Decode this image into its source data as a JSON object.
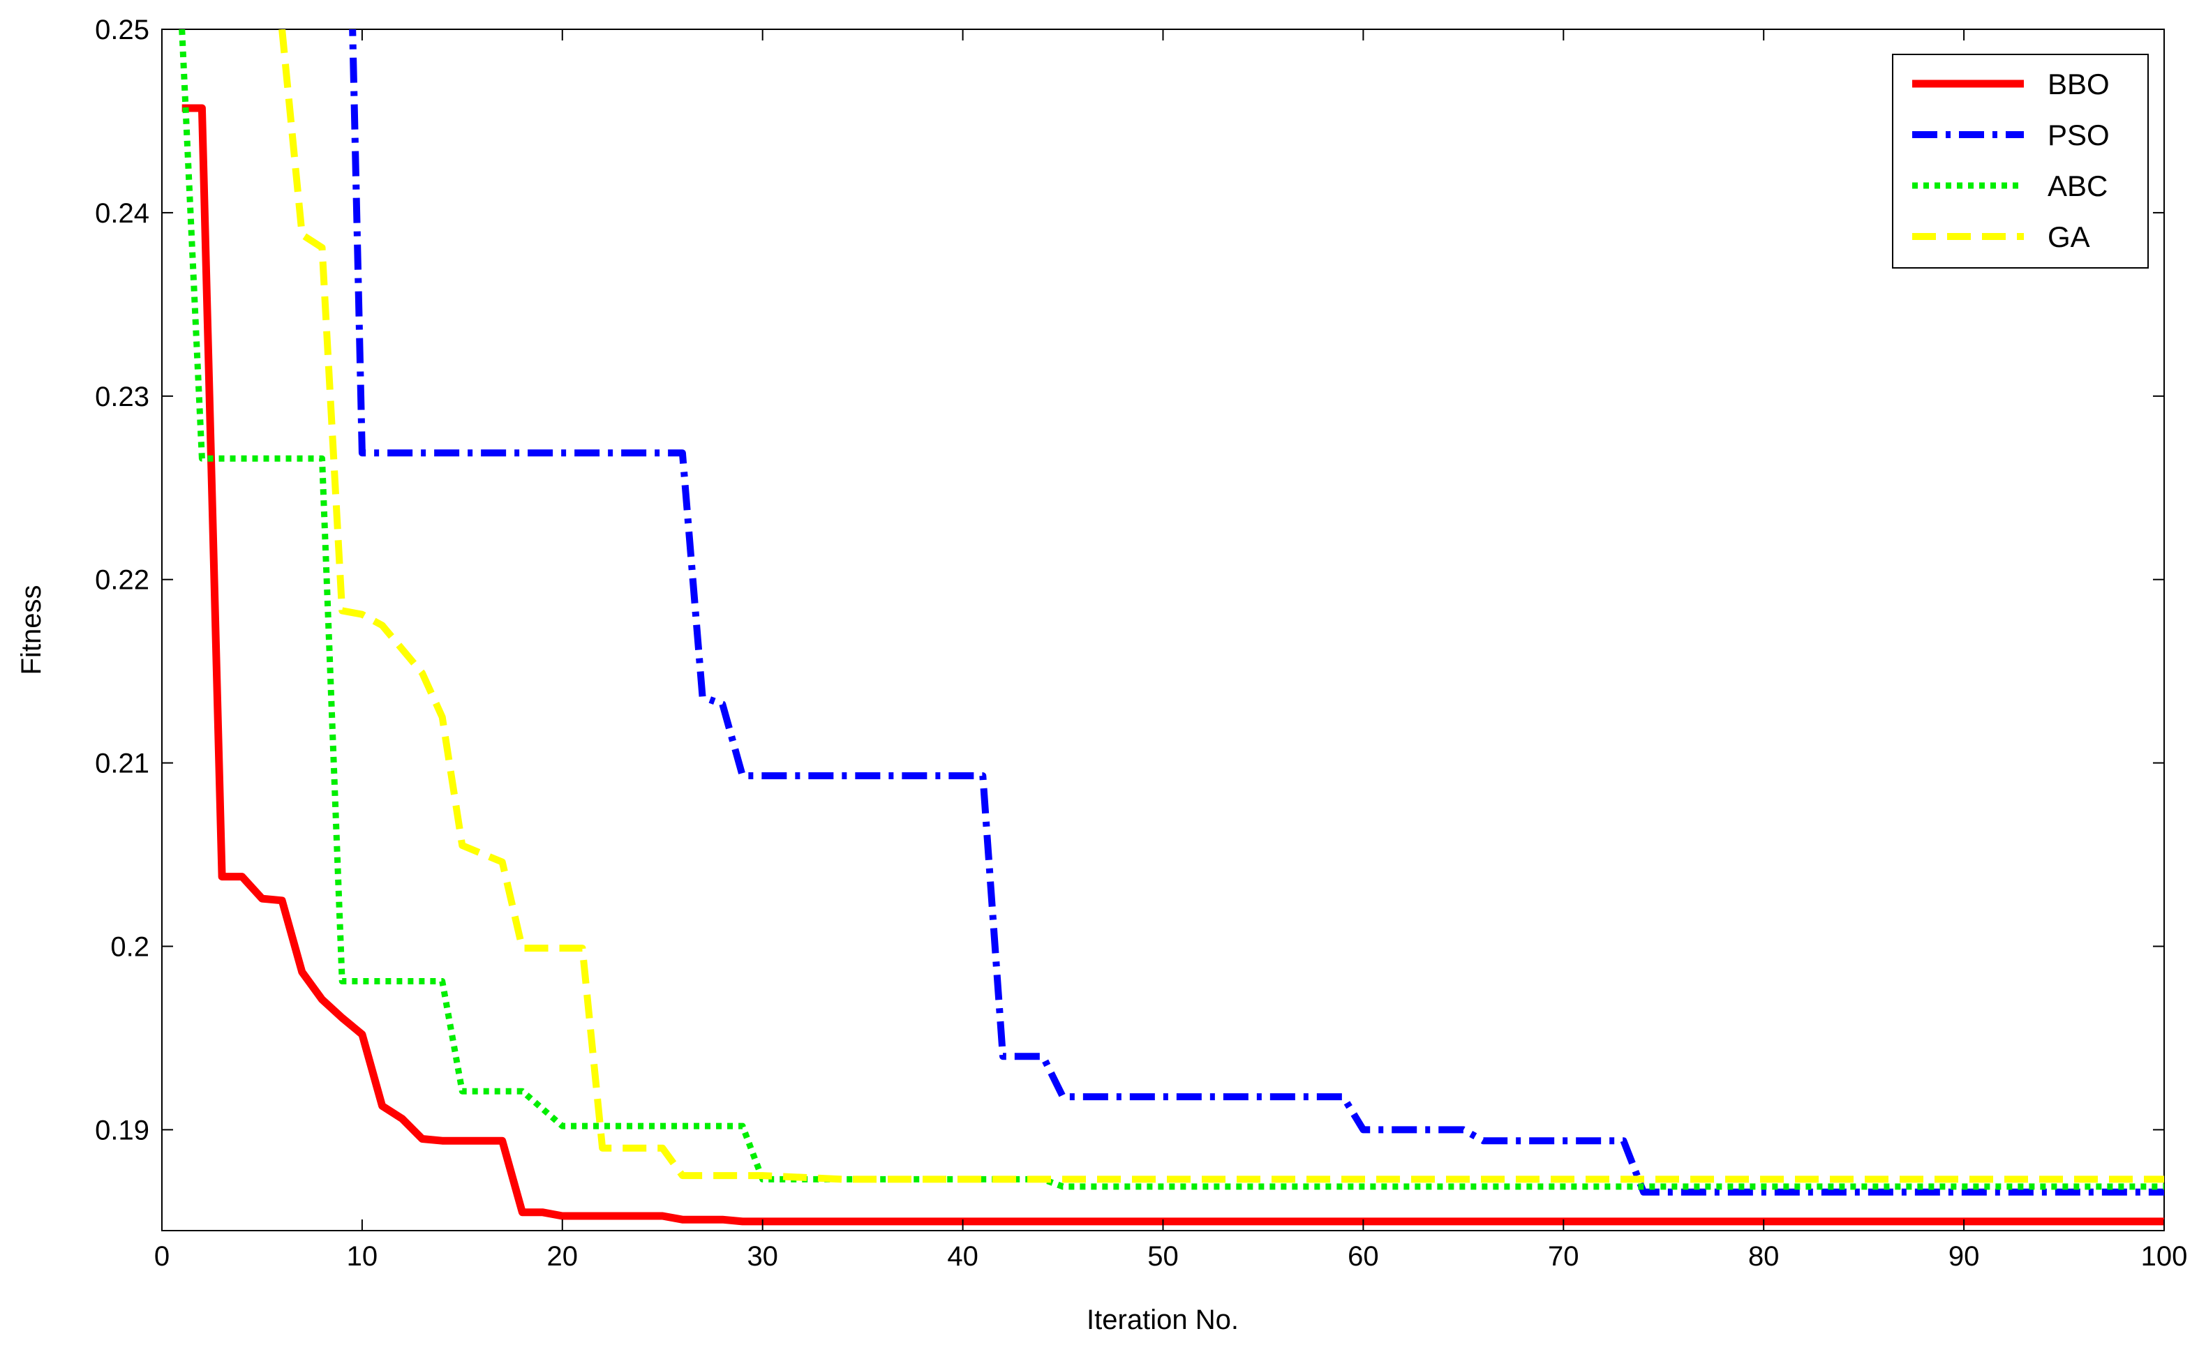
{
  "chart_data": {
    "type": "line",
    "title": "",
    "xlabel": "Iteration No.",
    "ylabel": "Fitness",
    "xlim": [
      0,
      100
    ],
    "ylim": [
      0.1845,
      0.25
    ],
    "xticks": [
      0,
      10,
      20,
      30,
      40,
      50,
      60,
      70,
      80,
      90,
      100
    ],
    "xtick_labels": [
      "0",
      "10",
      "20",
      "30",
      "40",
      "50",
      "60",
      "70",
      "80",
      "90",
      "100"
    ],
    "yticks": [
      0.19,
      0.2,
      0.21,
      0.22,
      0.23,
      0.24,
      0.25
    ],
    "ytick_labels": [
      "0.19",
      "0.2",
      "0.21",
      "0.22",
      "0.23",
      "0.24",
      "0.25"
    ],
    "grid": false,
    "legend_position": "top-right",
    "series": [
      {
        "name": "BBO",
        "color": "#ff0000",
        "style": "solid",
        "x": [
          1,
          2,
          3,
          4,
          5,
          6,
          7,
          8,
          9,
          10,
          11,
          12,
          13,
          14,
          15,
          16,
          17,
          18,
          19,
          20,
          25,
          26,
          28,
          29,
          100
        ],
        "y": [
          0.2457,
          0.2457,
          0.2038,
          0.2038,
          0.2026,
          0.2025,
          0.1986,
          0.1971,
          0.1961,
          0.1952,
          0.1913,
          0.1906,
          0.1895,
          0.1894,
          0.1894,
          0.1894,
          0.1894,
          0.1855,
          0.1855,
          0.1853,
          0.1853,
          0.1851,
          0.1851,
          0.185,
          0.185
        ]
      },
      {
        "name": "PSO",
        "color": "#0000ff",
        "style": "dash-dot",
        "x": [
          9.5,
          10,
          26,
          27,
          28,
          29,
          41,
          42,
          44,
          45,
          59,
          60,
          65,
          66,
          73,
          74,
          100
        ],
        "y": [
          0.251,
          0.2269,
          0.2269,
          0.2136,
          0.2132,
          0.2093,
          0.2093,
          0.194,
          0.194,
          0.1918,
          0.1918,
          0.19,
          0.19,
          0.1894,
          0.1894,
          0.1866,
          0.1866
        ]
      },
      {
        "name": "ABC",
        "color": "#00ee00",
        "style": "dotted",
        "x": [
          1,
          2,
          8,
          9,
          14,
          15,
          18,
          20,
          29,
          30,
          44,
          45,
          100
        ],
        "y": [
          0.25,
          0.2266,
          0.2266,
          0.1981,
          0.1981,
          0.1921,
          0.1921,
          0.1902,
          0.1902,
          0.1873,
          0.1873,
          0.1869,
          0.1869
        ]
      },
      {
        "name": "GA",
        "color": "#ffff00",
        "style": "dashed",
        "x": [
          6,
          7,
          8,
          9,
          10,
          11,
          13,
          14,
          15,
          17,
          18,
          21,
          22,
          25,
          26,
          30,
          34,
          100
        ],
        "y": [
          0.25,
          0.2388,
          0.2381,
          0.2183,
          0.2181,
          0.2175,
          0.2149,
          0.2125,
          0.2055,
          0.2046,
          0.1999,
          0.1999,
          0.189,
          0.189,
          0.1875,
          0.1875,
          0.1873,
          0.1873
        ]
      }
    ]
  }
}
